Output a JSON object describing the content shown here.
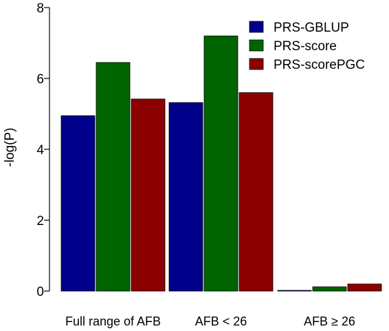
{
  "chart_data": {
    "type": "bar",
    "title": "",
    "xlabel": "",
    "ylabel": "-log(P)",
    "ylim": [
      0,
      8
    ],
    "yticks": [
      0,
      2,
      4,
      6,
      8
    ],
    "grid": false,
    "legend_position": "top-right",
    "categories": [
      "Full range of AFB",
      "AFB < 26",
      "AFB ≥ 26"
    ],
    "series": [
      {
        "name": "PRS-GBLUP",
        "color": "#00008B",
        "values": [
          4.95,
          5.32,
          0.02
        ]
      },
      {
        "name": "PRS-score",
        "color": "#006400",
        "values": [
          6.45,
          7.2,
          0.12
        ]
      },
      {
        "name": "PRS-scorePGC",
        "color": "#8B0000",
        "values": [
          5.42,
          5.6,
          0.2
        ]
      }
    ]
  }
}
